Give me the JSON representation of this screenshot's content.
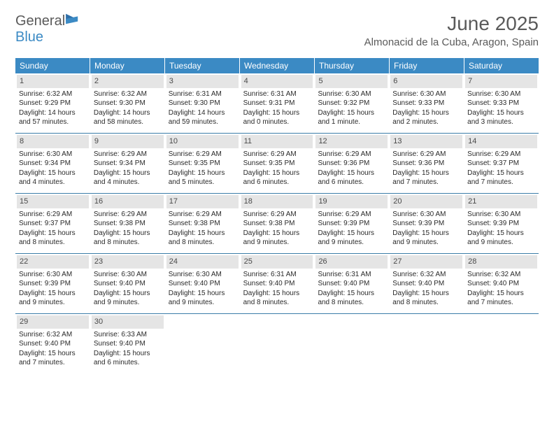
{
  "logo": {
    "text1": "General",
    "text2": "Blue"
  },
  "title": "June 2025",
  "location": "Almonacid de la Cuba, Aragon, Spain",
  "colors": {
    "header_bg": "#3b8ac4",
    "header_fg": "#ffffff",
    "daynum_bg": "#e5e5e5",
    "daynum_fg": "#4a4a4a",
    "rule": "#3b7da8",
    "text": "#2a2a2a",
    "title_fg": "#5a5a5a"
  },
  "weekdays": [
    "Sunday",
    "Monday",
    "Tuesday",
    "Wednesday",
    "Thursday",
    "Friday",
    "Saturday"
  ],
  "days": [
    {
      "n": "1",
      "sr": "6:32 AM",
      "ss": "9:29 PM",
      "dl": "14 hours and 57 minutes."
    },
    {
      "n": "2",
      "sr": "6:32 AM",
      "ss": "9:30 PM",
      "dl": "14 hours and 58 minutes."
    },
    {
      "n": "3",
      "sr": "6:31 AM",
      "ss": "9:30 PM",
      "dl": "14 hours and 59 minutes."
    },
    {
      "n": "4",
      "sr": "6:31 AM",
      "ss": "9:31 PM",
      "dl": "15 hours and 0 minutes."
    },
    {
      "n": "5",
      "sr": "6:30 AM",
      "ss": "9:32 PM",
      "dl": "15 hours and 1 minute."
    },
    {
      "n": "6",
      "sr": "6:30 AM",
      "ss": "9:33 PM",
      "dl": "15 hours and 2 minutes."
    },
    {
      "n": "7",
      "sr": "6:30 AM",
      "ss": "9:33 PM",
      "dl": "15 hours and 3 minutes."
    },
    {
      "n": "8",
      "sr": "6:30 AM",
      "ss": "9:34 PM",
      "dl": "15 hours and 4 minutes."
    },
    {
      "n": "9",
      "sr": "6:29 AM",
      "ss": "9:34 PM",
      "dl": "15 hours and 4 minutes."
    },
    {
      "n": "10",
      "sr": "6:29 AM",
      "ss": "9:35 PM",
      "dl": "15 hours and 5 minutes."
    },
    {
      "n": "11",
      "sr": "6:29 AM",
      "ss": "9:35 PM",
      "dl": "15 hours and 6 minutes."
    },
    {
      "n": "12",
      "sr": "6:29 AM",
      "ss": "9:36 PM",
      "dl": "15 hours and 6 minutes."
    },
    {
      "n": "13",
      "sr": "6:29 AM",
      "ss": "9:36 PM",
      "dl": "15 hours and 7 minutes."
    },
    {
      "n": "14",
      "sr": "6:29 AM",
      "ss": "9:37 PM",
      "dl": "15 hours and 7 minutes."
    },
    {
      "n": "15",
      "sr": "6:29 AM",
      "ss": "9:37 PM",
      "dl": "15 hours and 8 minutes."
    },
    {
      "n": "16",
      "sr": "6:29 AM",
      "ss": "9:38 PM",
      "dl": "15 hours and 8 minutes."
    },
    {
      "n": "17",
      "sr": "6:29 AM",
      "ss": "9:38 PM",
      "dl": "15 hours and 8 minutes."
    },
    {
      "n": "18",
      "sr": "6:29 AM",
      "ss": "9:38 PM",
      "dl": "15 hours and 9 minutes."
    },
    {
      "n": "19",
      "sr": "6:29 AM",
      "ss": "9:39 PM",
      "dl": "15 hours and 9 minutes."
    },
    {
      "n": "20",
      "sr": "6:30 AM",
      "ss": "9:39 PM",
      "dl": "15 hours and 9 minutes."
    },
    {
      "n": "21",
      "sr": "6:30 AM",
      "ss": "9:39 PM",
      "dl": "15 hours and 9 minutes."
    },
    {
      "n": "22",
      "sr": "6:30 AM",
      "ss": "9:39 PM",
      "dl": "15 hours and 9 minutes."
    },
    {
      "n": "23",
      "sr": "6:30 AM",
      "ss": "9:40 PM",
      "dl": "15 hours and 9 minutes."
    },
    {
      "n": "24",
      "sr": "6:30 AM",
      "ss": "9:40 PM",
      "dl": "15 hours and 9 minutes."
    },
    {
      "n": "25",
      "sr": "6:31 AM",
      "ss": "9:40 PM",
      "dl": "15 hours and 8 minutes."
    },
    {
      "n": "26",
      "sr": "6:31 AM",
      "ss": "9:40 PM",
      "dl": "15 hours and 8 minutes."
    },
    {
      "n": "27",
      "sr": "6:32 AM",
      "ss": "9:40 PM",
      "dl": "15 hours and 8 minutes."
    },
    {
      "n": "28",
      "sr": "6:32 AM",
      "ss": "9:40 PM",
      "dl": "15 hours and 7 minutes."
    },
    {
      "n": "29",
      "sr": "6:32 AM",
      "ss": "9:40 PM",
      "dl": "15 hours and 7 minutes."
    },
    {
      "n": "30",
      "sr": "6:33 AM",
      "ss": "9:40 PM",
      "dl": "15 hours and 6 minutes."
    }
  ],
  "labels": {
    "sunrise": "Sunrise:",
    "sunset": "Sunset:",
    "daylight": "Daylight:"
  },
  "layout": {
    "first_weekday_index": 0,
    "cols": 7,
    "rows": 5
  }
}
